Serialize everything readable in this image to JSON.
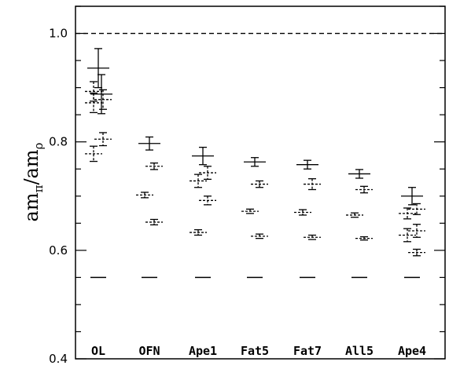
{
  "chart_data": {
    "type": "scatter",
    "ylabel": {
      "base": "am",
      "sub_num": "π",
      "slash": "/",
      "base2": "am",
      "sub_den": "ρ"
    },
    "ylim": [
      0.4,
      1.05
    ],
    "yticks": [
      {
        "value": 0.4,
        "label": "0.4"
      },
      {
        "value": 0.6,
        "label": "0.6"
      },
      {
        "value": 0.8,
        "label": "0.8"
      },
      {
        "value": 1.0,
        "label": "1.0"
      }
    ],
    "reference_lines": [
      {
        "value": 1.0,
        "style": "dashed"
      }
    ],
    "categories": [
      "OL",
      "OFN",
      "Ape1",
      "Fat5",
      "Fat7",
      "All5",
      "Ape4"
    ],
    "series": [
      {
        "style": "solid",
        "points": [
          {
            "cat": 0,
            "y": 0.936,
            "err": 0.036
          },
          {
            "cat": 0,
            "y": 0.888,
            "err": 0.036
          },
          {
            "cat": 1,
            "y": 0.797,
            "err": 0.012
          },
          {
            "cat": 2,
            "y": 0.774,
            "err": 0.016
          },
          {
            "cat": 3,
            "y": 0.763,
            "err": 0.008
          },
          {
            "cat": 4,
            "y": 0.758,
            "err": 0.008
          },
          {
            "cat": 5,
            "y": 0.741,
            "err": 0.008
          },
          {
            "cat": 6,
            "y": 0.7,
            "err": 0.016
          }
        ]
      },
      {
        "style": "dashed",
        "points": [
          {
            "cat": 0,
            "y": 0.893,
            "err": 0.018
          },
          {
            "cat": 0,
            "y": 0.878,
            "err": 0.018
          },
          {
            "cat": 0,
            "y": 0.872,
            "err": 0.018
          },
          {
            "cat": 0,
            "y": 0.805,
            "err": 0.012
          },
          {
            "cat": 0,
            "y": 0.778,
            "err": 0.014
          },
          {
            "cat": 1,
            "y": 0.755,
            "err": 0.006
          },
          {
            "cat": 1,
            "y": 0.702,
            "err": 0.005
          },
          {
            "cat": 1,
            "y": 0.652,
            "err": 0.005
          },
          {
            "cat": 2,
            "y": 0.743,
            "err": 0.012
          },
          {
            "cat": 2,
            "y": 0.728,
            "err": 0.012
          },
          {
            "cat": 2,
            "y": 0.692,
            "err": 0.008
          },
          {
            "cat": 2,
            "y": 0.633,
            "err": 0.005
          },
          {
            "cat": 3,
            "y": 0.722,
            "err": 0.006
          },
          {
            "cat": 3,
            "y": 0.672,
            "err": 0.004
          },
          {
            "cat": 3,
            "y": 0.626,
            "err": 0.004
          },
          {
            "cat": 4,
            "y": 0.722,
            "err": 0.01
          },
          {
            "cat": 4,
            "y": 0.67,
            "err": 0.005
          },
          {
            "cat": 4,
            "y": 0.624,
            "err": 0.004
          },
          {
            "cat": 5,
            "y": 0.712,
            "err": 0.006
          },
          {
            "cat": 5,
            "y": 0.665,
            "err": 0.004
          },
          {
            "cat": 5,
            "y": 0.622,
            "err": 0.003
          },
          {
            "cat": 6,
            "y": 0.676,
            "err": 0.01
          },
          {
            "cat": 6,
            "y": 0.668,
            "err": 0.01
          },
          {
            "cat": 6,
            "y": 0.636,
            "err": 0.012
          },
          {
            "cat": 6,
            "y": 0.628,
            "err": 0.012
          },
          {
            "cat": 6,
            "y": 0.596,
            "err": 0.006
          }
        ]
      },
      {
        "style": "solid-short",
        "points": [
          {
            "cat": 0,
            "y": 0.55,
            "err": 0
          },
          {
            "cat": 1,
            "y": 0.55,
            "err": 0
          },
          {
            "cat": 2,
            "y": 0.55,
            "err": 0
          },
          {
            "cat": 3,
            "y": 0.55,
            "err": 0
          },
          {
            "cat": 4,
            "y": 0.55,
            "err": 0
          },
          {
            "cat": 5,
            "y": 0.55,
            "err": 0
          },
          {
            "cat": 6,
            "y": 0.55,
            "err": 0
          }
        ]
      }
    ]
  }
}
